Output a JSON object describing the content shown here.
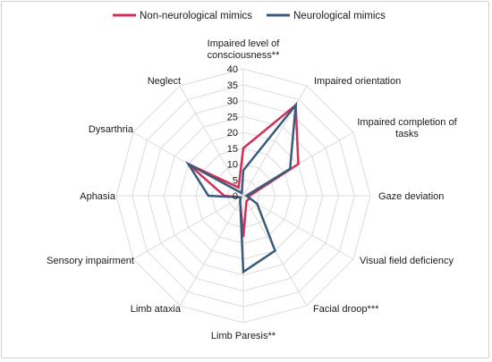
{
  "chart_data": {
    "type": "radar",
    "categories": [
      "Impaired level of consciousness**",
      "Impaired orientation",
      "Impaired completion of tasks",
      "Gaze deviation",
      "Visual field deficiency",
      "Facial droop***",
      "Limb Paresis**",
      "Limb ataxia",
      "Sensory impairment",
      "Aphasia",
      "Dysarthria",
      "Neglect"
    ],
    "series": [
      {
        "name": "Non-neurological mimics",
        "color": "#d42d56",
        "values": [
          15,
          33,
          20,
          2,
          2,
          2,
          13,
          2,
          1,
          6,
          20,
          3
        ]
      },
      {
        "name": "Neurological mimics",
        "color": "#3a5a7c",
        "values": [
          8,
          33,
          17,
          1,
          5,
          20,
          24,
          2,
          1,
          11,
          20,
          1
        ]
      }
    ],
    "rlim": [
      0,
      40
    ],
    "ticks": [
      0,
      5,
      10,
      15,
      20,
      25,
      30,
      35,
      40
    ],
    "grid": true,
    "legend": "top"
  }
}
